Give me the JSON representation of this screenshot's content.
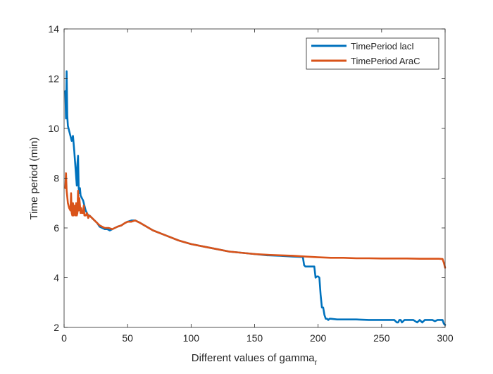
{
  "chart_data": {
    "type": "line",
    "title": "",
    "xlabel": "Different values of gamma",
    "xlabel_subscript": "r",
    "ylabel": "Time period (min)",
    "xlim": [
      0,
      300
    ],
    "ylim": [
      2,
      14
    ],
    "xticks": [
      0,
      50,
      100,
      150,
      200,
      250,
      300
    ],
    "yticks": [
      2,
      4,
      6,
      8,
      10,
      12,
      14
    ],
    "grid": false,
    "legend_position": "top-right",
    "series": [
      {
        "name": "TimePeriod lacI",
        "color": "#0072BD",
        "x": [
          1,
          1.5,
          2,
          2.5,
          3,
          3.5,
          4,
          5,
          6,
          7,
          8,
          9,
          10,
          10.5,
          11,
          11.5,
          12,
          12.5,
          13,
          14,
          15,
          16,
          17,
          18,
          19,
          20,
          22,
          24,
          26,
          28,
          30,
          32,
          34,
          36,
          38,
          40,
          42,
          45,
          48,
          50,
          53,
          56,
          58,
          60,
          65,
          70,
          80,
          90,
          100,
          110,
          120,
          130,
          140,
          150,
          160,
          170,
          180,
          188,
          189,
          190,
          195,
          197,
          198,
          199,
          200,
          201,
          202,
          203,
          204,
          205,
          206,
          207,
          208,
          209,
          210,
          215,
          220,
          230,
          240,
          250,
          255,
          260,
          262,
          263,
          264,
          265,
          266,
          268,
          270,
          275,
          278,
          280,
          282,
          284,
          286,
          288,
          290,
          292,
          294,
          296,
          298,
          299,
          300
        ],
        "y": [
          11.5,
          10.4,
          12.3,
          10.5,
          10.1,
          10.0,
          9.9,
          9.7,
          9.5,
          9.7,
          9.1,
          8.4,
          7.7,
          8.6,
          8.9,
          7.6,
          7.4,
          7.6,
          7.3,
          7.2,
          7.1,
          6.9,
          6.7,
          6.6,
          6.5,
          6.5,
          6.4,
          6.3,
          6.2,
          6.05,
          6.0,
          5.95,
          5.95,
          5.9,
          5.95,
          6.0,
          6.05,
          6.1,
          6.2,
          6.25,
          6.3,
          6.3,
          6.25,
          6.2,
          6.05,
          5.9,
          5.7,
          5.5,
          5.35,
          5.25,
          5.15,
          5.05,
          5.0,
          4.95,
          4.9,
          4.88,
          4.85,
          4.83,
          4.5,
          4.45,
          4.45,
          4.45,
          4.0,
          4.05,
          4.05,
          4.0,
          3.3,
          2.8,
          2.8,
          2.5,
          2.35,
          2.35,
          2.3,
          2.35,
          2.35,
          2.32,
          2.32,
          2.32,
          2.3,
          2.3,
          2.3,
          2.3,
          2.2,
          2.2,
          2.3,
          2.3,
          2.2,
          2.3,
          2.3,
          2.3,
          2.2,
          2.3,
          2.2,
          2.3,
          2.3,
          2.3,
          2.3,
          2.25,
          2.3,
          2.3,
          2.3,
          2.15,
          2.1
        ]
      },
      {
        "name": "TimePeriod AraC",
        "color": "#D95319",
        "x": [
          1,
          1.5,
          2,
          3,
          4,
          5,
          5.5,
          6,
          6.5,
          7,
          7.5,
          8,
          8.5,
          9,
          9.5,
          10,
          10.5,
          11,
          11.5,
          12,
          13,
          13.5,
          14,
          15,
          15.5,
          16,
          17,
          18,
          19,
          20,
          22,
          24,
          26,
          28,
          30,
          32,
          35,
          38,
          40,
          42,
          45,
          48,
          50,
          53,
          56,
          58,
          60,
          65,
          70,
          80,
          90,
          100,
          110,
          120,
          130,
          140,
          150,
          160,
          170,
          180,
          190,
          200,
          210,
          220,
          230,
          240,
          250,
          260,
          270,
          280,
          290,
          295,
          298,
          299,
          300
        ],
        "y": [
          7.6,
          8.2,
          7.5,
          7.0,
          6.8,
          6.7,
          7.4,
          6.6,
          6.5,
          7.0,
          6.5,
          6.6,
          6.9,
          6.5,
          7.0,
          6.5,
          6.6,
          7.5,
          6.7,
          7.2,
          6.6,
          6.8,
          6.6,
          6.6,
          6.9,
          6.5,
          6.5,
          6.6,
          6.4,
          6.5,
          6.4,
          6.3,
          6.2,
          6.1,
          6.05,
          6.0,
          6.0,
          5.95,
          6.0,
          6.05,
          6.1,
          6.2,
          6.25,
          6.25,
          6.3,
          6.25,
          6.2,
          6.05,
          5.9,
          5.7,
          5.5,
          5.35,
          5.25,
          5.15,
          5.05,
          5.0,
          4.95,
          4.92,
          4.9,
          4.88,
          4.85,
          4.82,
          4.8,
          4.8,
          4.78,
          4.78,
          4.77,
          4.77,
          4.77,
          4.76,
          4.76,
          4.76,
          4.75,
          4.6,
          4.4
        ]
      }
    ]
  }
}
